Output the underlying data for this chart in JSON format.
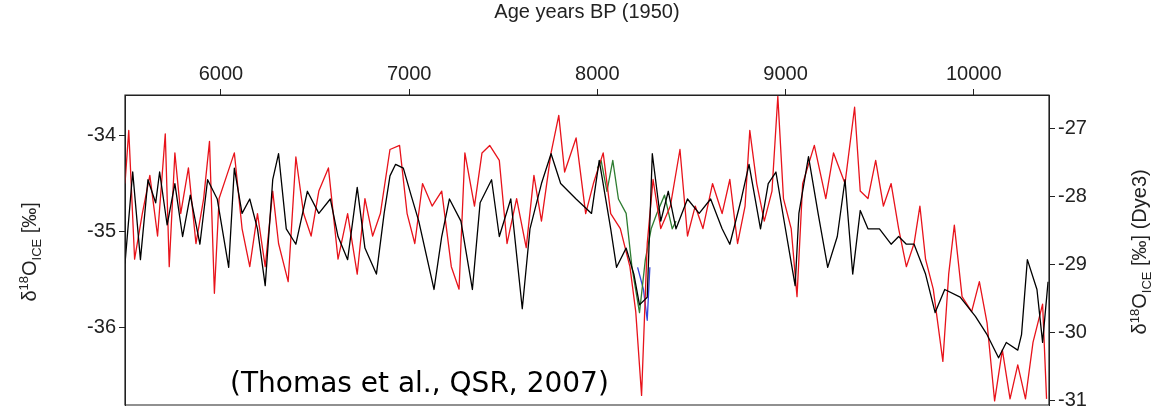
{
  "chart_data": {
    "type": "line",
    "xlabel": "Age years BP (1950)",
    "ylabel": "δ$^{18}$O$_{ICE}$ [‰]",
    "y2label": "δ$^{18}$O$_{ICE}$ [‰] (Dye3)",
    "xlim": [
      5490,
      10400
    ],
    "xticks": [
      6000,
      7000,
      8000,
      9000,
      10000
    ],
    "ylim": [
      -36.8,
      -33.58
    ],
    "yticks": [
      -34,
      -35,
      -36
    ],
    "y2lim": [
      -31.06,
      -26.51
    ],
    "y2ticks": [
      -27,
      -28,
      -29,
      -30,
      -31
    ],
    "grid": false,
    "legend": false,
    "annotations": [
      "(Thomas et al., QSR, 2007)"
    ],
    "series": [
      {
        "color": "#000000",
        "x": [
          5490,
          5531,
          5572,
          5612,
          5653,
          5674,
          5714,
          5755,
          5796,
          5837,
          5888,
          5929,
          5980,
          6041,
          6071,
          6112,
          6153,
          6194,
          6235,
          6275,
          6306,
          6347,
          6398,
          6459,
          6520,
          6581,
          6622,
          6673,
          6724,
          6765,
          6826,
          6867,
          6898,
          6928,
          6969,
          7010,
          7051,
          7132,
          7173,
          7214,
          7275,
          7336,
          7377,
          7438,
          7479,
          7540,
          7601,
          7642,
          7703,
          7754,
          7805,
          7887,
          7969,
          8010,
          8071,
          8102,
          8153,
          8194,
          8224,
          8265,
          8292,
          8337,
          8377,
          8418,
          8479,
          8541,
          8602,
          8663,
          8704,
          8765,
          8806,
          8867,
          8908,
          8949,
          8989,
          9051,
          9071,
          9122,
          9173,
          9224,
          9275,
          9316,
          9357,
          9397,
          9438,
          9499,
          9561,
          9601,
          9642,
          9683,
          9744,
          9795,
          9846,
          9928,
          10009,
          10071,
          10132,
          10173,
          10234,
          10254,
          10285,
          10336,
          10366,
          10395
        ],
        "values": [
          -35.33,
          -34.38,
          -35.29,
          -34.46,
          -34.7,
          -34.38,
          -34.93,
          -34.5,
          -35.05,
          -34.62,
          -35.13,
          -34.46,
          -34.66,
          -35.37,
          -34.34,
          -34.81,
          -34.66,
          -34.97,
          -35.56,
          -34.46,
          -34.19,
          -34.97,
          -35.13,
          -34.58,
          -34.81,
          -34.66,
          -35.05,
          -35.29,
          -34.54,
          -35.17,
          -35.44,
          -34.81,
          -34.42,
          -34.3,
          -34.34,
          -34.62,
          -34.89,
          -35.6,
          -35.05,
          -34.66,
          -34.89,
          -35.6,
          -34.7,
          -34.46,
          -35.05,
          -34.66,
          -35.8,
          -34.97,
          -34.5,
          -34.19,
          -34.5,
          -34.66,
          -34.81,
          -34.26,
          -34.97,
          -35.37,
          -35.17,
          -35.44,
          -35.76,
          -35.68,
          -34.19,
          -34.89,
          -34.58,
          -34.97,
          -34.66,
          -34.81,
          -34.66,
          -34.97,
          -35.13,
          -34.66,
          -34.3,
          -34.97,
          -34.5,
          -34.38,
          -34.85,
          -35.56,
          -34.81,
          -34.22,
          -34.81,
          -35.37,
          -35.05,
          -34.46,
          -35.44,
          -34.78,
          -34.97,
          -34.97,
          -35.13,
          -35.05,
          -35.13,
          -35.13,
          -35.44,
          -35.84,
          -35.6,
          -35.68,
          -35.88,
          -36.07,
          -36.31,
          -36.15,
          -36.23,
          -36.07,
          -35.29,
          -35.6,
          -36.15,
          -35.52
        ]
      },
      {
        "color": "#e8131b",
        "axis": "y2",
        "x": [
          5490,
          5510,
          5541,
          5582,
          5622,
          5663,
          5704,
          5725,
          5755,
          5786,
          5827,
          5867,
          5908,
          5939,
          5965,
          5990,
          6031,
          6071,
          6112,
          6153,
          6194,
          6235,
          6275,
          6306,
          6357,
          6398,
          6439,
          6479,
          6520,
          6571,
          6622,
          6673,
          6724,
          6765,
          6806,
          6847,
          6898,
          6949,
          6989,
          7030,
          7071,
          7122,
          7173,
          7224,
          7265,
          7296,
          7347,
          7387,
          7428,
          7479,
          7520,
          7571,
          7622,
          7663,
          7703,
          7754,
          7795,
          7826,
          7887,
          7938,
          7979,
          8031,
          8071,
          8122,
          8173,
          8204,
          8235,
          8265,
          8296,
          8337,
          8388,
          8439,
          8479,
          8520,
          8561,
          8612,
          8663,
          8704,
          8745,
          8785,
          8810,
          8847,
          8887,
          8928,
          8959,
          8989,
          9030,
          9061,
          9091,
          9153,
          9214,
          9255,
          9316,
          9367,
          9397,
          9438,
          9479,
          9520,
          9561,
          9601,
          9642,
          9683,
          9714,
          9744,
          9785,
          9836,
          9867,
          9897,
          9938,
          9989,
          10030,
          10071,
          10111,
          10152,
          10193,
          10234,
          10275,
          10315,
          10366,
          10387
        ],
        "values": [
          -27.81,
          -27.03,
          -28.92,
          -28.25,
          -27.69,
          -28.58,
          -27.08,
          -29.03,
          -27.36,
          -28.25,
          -27.58,
          -28.69,
          -28.03,
          -27.19,
          -29.42,
          -28.03,
          -27.69,
          -27.36,
          -28.47,
          -29.03,
          -28.25,
          -29.03,
          -27.92,
          -28.69,
          -29.25,
          -27.42,
          -28.25,
          -28.58,
          -27.92,
          -27.58,
          -28.92,
          -28.25,
          -29.14,
          -28.03,
          -28.58,
          -28.25,
          -27.31,
          -27.25,
          -28.25,
          -28.69,
          -27.81,
          -28.14,
          -27.92,
          -29.03,
          -29.36,
          -27.36,
          -28.14,
          -27.36,
          -27.25,
          -27.47,
          -28.69,
          -28.03,
          -28.75,
          -27.69,
          -28.36,
          -27.36,
          -26.81,
          -27.64,
          -27.14,
          -28.25,
          -27.81,
          -27.36,
          -28.25,
          -28.47,
          -29.03,
          -29.69,
          -30.92,
          -28.69,
          -27.75,
          -28.47,
          -28.14,
          -27.31,
          -28.58,
          -28.14,
          -28.47,
          -27.81,
          -28.25,
          -27.75,
          -28.69,
          -28.14,
          -27.03,
          -27.81,
          -28.36,
          -27.92,
          -26.53,
          -28.03,
          -28.47,
          -29.47,
          -27.81,
          -27.25,
          -28.03,
          -27.36,
          -27.81,
          -26.69,
          -27.92,
          -28.03,
          -27.47,
          -28.14,
          -27.81,
          -28.47,
          -29.03,
          -28.69,
          -28.14,
          -28.92,
          -29.36,
          -30.42,
          -29.14,
          -28.42,
          -29.47,
          -29.69,
          -29.25,
          -29.86,
          -31.0,
          -30.25,
          -30.97,
          -30.47,
          -30.97,
          -30.14,
          -29.58,
          -30.97
        ]
      },
      {
        "color": "#2e7d32",
        "x": [
          8000,
          8020,
          8051,
          8082,
          8112,
          8153,
          8184,
          8224,
          8255,
          8286,
          8316,
          8357,
          8398,
          8418
        ],
        "values": [
          -34.34,
          -34.26,
          -34.58,
          -34.26,
          -34.66,
          -34.81,
          -35.37,
          -35.84,
          -35.29,
          -34.97,
          -34.81,
          -34.62,
          -34.97,
          -34.89
        ]
      },
      {
        "color": "#3344dd",
        "x": [
          8214,
          8245,
          8265,
          8279
        ],
        "values": [
          -35.37,
          -35.6,
          -35.92,
          -35.37
        ]
      }
    ]
  }
}
